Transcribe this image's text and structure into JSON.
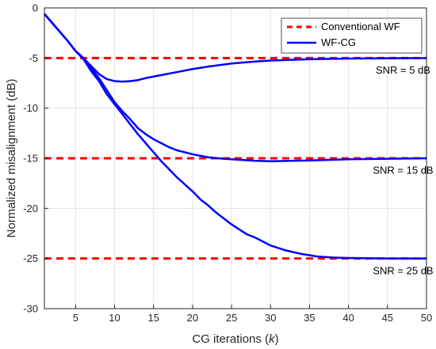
{
  "chart_data": {
    "type": "line",
    "title": "",
    "xlabel": "CG iterations (",
    "xlabel_var": "k",
    "xlabel_close": ")",
    "ylabel": "Normalized misalignment (dB)",
    "xlim": [
      1,
      50
    ],
    "ylim": [
      -30,
      0
    ],
    "xticks": [
      5,
      10,
      15,
      20,
      25,
      30,
      35,
      40,
      45,
      50
    ],
    "yticks": [
      0,
      -5,
      -10,
      -15,
      -20,
      -25,
      -30
    ],
    "grid": true,
    "legend": {
      "placement": "top-right",
      "entries": [
        {
          "label": "Conventional WF",
          "color": "#ff0000",
          "style": "dashed"
        },
        {
          "label": "WF-CG",
          "color": "#0000ff",
          "style": "solid"
        }
      ]
    },
    "conventional_levels": [
      -5,
      -15,
      -25
    ],
    "series": [
      {
        "snr": "SNR = 5 dB",
        "x": [
          1,
          2,
          3,
          4,
          5,
          6,
          7,
          8,
          9,
          10,
          11,
          12,
          13,
          14,
          15,
          16,
          18,
          20,
          22,
          25,
          28,
          30,
          35,
          40,
          45,
          50
        ],
        "y": [
          -0.6,
          -1.5,
          -2.4,
          -3.3,
          -4.3,
          -5.0,
          -5.8,
          -6.6,
          -7.1,
          -7.3,
          -7.35,
          -7.3,
          -7.2,
          -7.0,
          -6.85,
          -6.7,
          -6.4,
          -6.1,
          -5.85,
          -5.55,
          -5.35,
          -5.25,
          -5.12,
          -5.05,
          -5.02,
          -5.0
        ]
      },
      {
        "snr": "SNR = 15 dB",
        "x": [
          1,
          2,
          3,
          4,
          5,
          6,
          7,
          8,
          9,
          10,
          11,
          12,
          13,
          14,
          15,
          16,
          17,
          18,
          20,
          22,
          24,
          26,
          28,
          30,
          33,
          36,
          40,
          45,
          50
        ],
        "y": [
          -0.6,
          -1.5,
          -2.4,
          -3.3,
          -4.3,
          -5.0,
          -6.0,
          -7.0,
          -8.2,
          -9.4,
          -10.3,
          -11.1,
          -12.0,
          -12.6,
          -13.1,
          -13.5,
          -13.9,
          -14.2,
          -14.6,
          -14.9,
          -15.05,
          -15.15,
          -15.25,
          -15.3,
          -15.25,
          -15.2,
          -15.1,
          -15.05,
          -15.0
        ]
      },
      {
        "snr": "SNR = 25 dB",
        "x": [
          1,
          2,
          3,
          4,
          5,
          6,
          7,
          8,
          9,
          10,
          11,
          12,
          13,
          14,
          15,
          16,
          17,
          18,
          19,
          20,
          21,
          22,
          23,
          24,
          25,
          26,
          27,
          28,
          29,
          30,
          32,
          34,
          36,
          38,
          40,
          45,
          50
        ],
        "y": [
          -0.6,
          -1.5,
          -2.4,
          -3.3,
          -4.3,
          -5.1,
          -6.3,
          -7.3,
          -8.6,
          -9.6,
          -10.6,
          -11.6,
          -12.6,
          -13.5,
          -14.4,
          -15.3,
          -16.1,
          -16.9,
          -17.6,
          -18.3,
          -19.1,
          -19.7,
          -20.4,
          -21.0,
          -21.6,
          -22.1,
          -22.6,
          -22.9,
          -23.3,
          -23.7,
          -24.2,
          -24.55,
          -24.8,
          -24.9,
          -24.95,
          -25.0,
          -25.0
        ]
      }
    ],
    "annotations": [
      {
        "text": "SNR = 5 dB",
        "x": 47,
        "y": -6.2
      },
      {
        "text": "SNR = 15 dB",
        "x": 47,
        "y": -16.2
      },
      {
        "text": "SNR = 25 dB",
        "x": 47,
        "y": -26.2
      }
    ]
  }
}
